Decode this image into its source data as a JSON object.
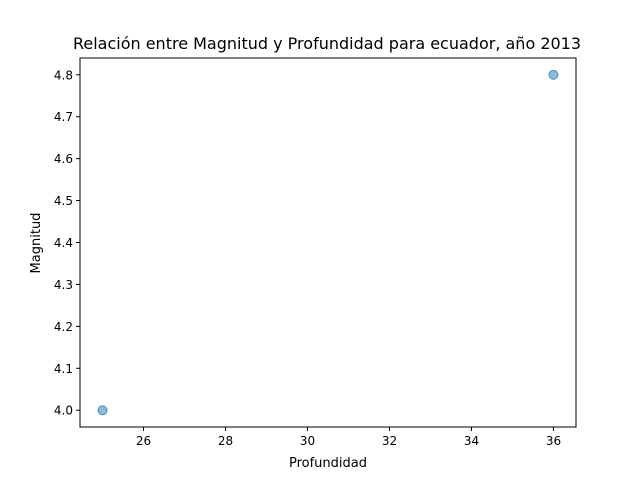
{
  "chart_data": {
    "type": "scatter",
    "title": "Relación entre Magnitud y Profundidad para ecuador, año 2013",
    "xlabel": "Profundidad",
    "ylabel": "Magnitud",
    "xlim": [
      24.45,
      36.55
    ],
    "ylim": [
      3.96,
      4.84
    ],
    "xticks": [
      26,
      28,
      30,
      32,
      34,
      36
    ],
    "yticks": [
      4.0,
      4.1,
      4.2,
      4.3,
      4.4,
      4.5,
      4.6,
      4.7,
      4.8
    ],
    "xtick_labels": [
      "26",
      "28",
      "30",
      "32",
      "34",
      "36"
    ],
    "ytick_labels": [
      "4.0",
      "4.1",
      "4.2",
      "4.3",
      "4.4",
      "4.5",
      "4.6",
      "4.7",
      "4.8"
    ],
    "points": [
      {
        "x": 25,
        "y": 4.0
      },
      {
        "x": 36,
        "y": 4.8
      }
    ],
    "grid": false,
    "marker_color": "#1f77b4",
    "marker_opacity": 0.5
  }
}
